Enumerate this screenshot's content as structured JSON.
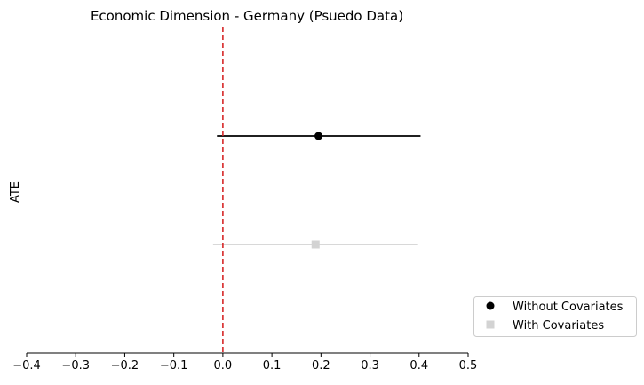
{
  "chart_data": {
    "type": "scatter",
    "title": "Economic Dimension - Germany (Psuedo Data)",
    "xlabel": "",
    "ylabel": "ATE",
    "xlim": [
      -0.4,
      0.5
    ],
    "xticks": [
      -0.4,
      -0.3,
      -0.2,
      -0.1,
      0.0,
      0.1,
      0.2,
      0.3,
      0.4,
      0.5
    ],
    "xtick_labels": [
      "−0.4",
      "−0.3",
      "−0.2",
      "−0.1",
      "0.0",
      "0.1",
      "0.2",
      "0.3",
      "0.4",
      "0.5"
    ],
    "reference_line": {
      "x": 0.0,
      "color": "#d62728",
      "style": "dashed"
    },
    "grid": false,
    "legend_position": "outside lower-right",
    "series": [
      {
        "name": "Without Covariates",
        "estimate": 0.195,
        "ci": [
          -0.012,
          0.403
        ],
        "marker": "circle",
        "color": "#000000"
      },
      {
        "name": "With Covariates",
        "estimate": 0.189,
        "ci": [
          -0.02,
          0.398
        ],
        "marker": "square",
        "color": "#d3d3d3"
      }
    ]
  }
}
